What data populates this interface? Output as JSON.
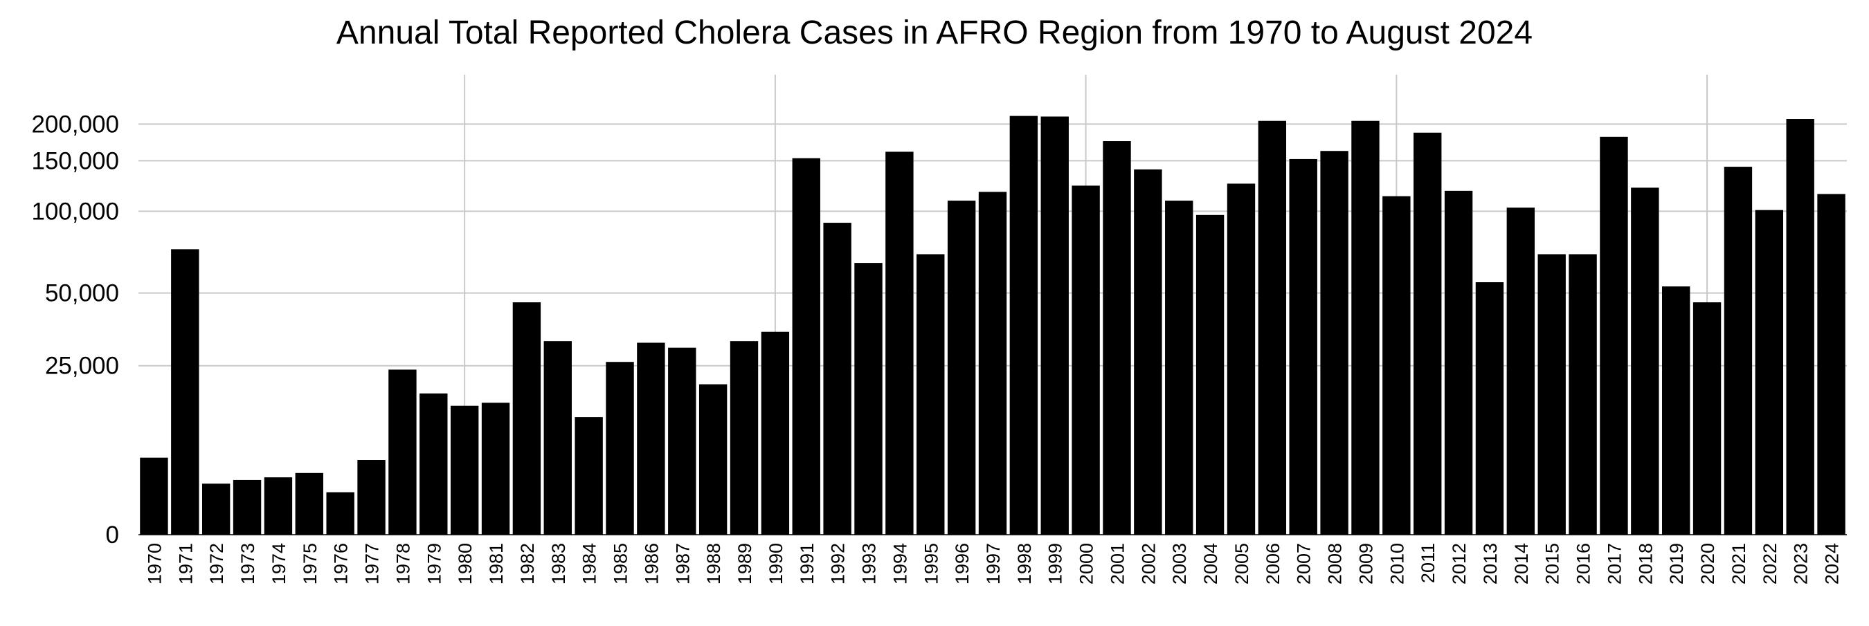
{
  "chart_data": {
    "type": "bar",
    "title": "Annual Total Reported Cholera Cases in AFRO Region from 1970 to August 2024",
    "xlabel": "",
    "ylabel": "",
    "y_scale": "symlog",
    "ylim": [
      0,
      210000
    ],
    "y_ticks": [
      {
        "value": 0,
        "label": "0"
      },
      {
        "value": 25000,
        "label": "25,000"
      },
      {
        "value": 50000,
        "label": "50,000"
      },
      {
        "value": 100000,
        "label": "100,000"
      },
      {
        "value": 150000,
        "label": "150,000"
      },
      {
        "value": 200000,
        "label": "200,000"
      }
    ],
    "x_grid_at": [
      "1980",
      "1990",
      "2000",
      "2010",
      "2020"
    ],
    "grid": true,
    "bar_color": "#000000",
    "categories": [
      "1970",
      "1971",
      "1972",
      "1973",
      "1974",
      "1975",
      "1976",
      "1977",
      "1978",
      "1979",
      "1980",
      "1981",
      "1982",
      "1983",
      "1984",
      "1985",
      "1986",
      "1987",
      "1988",
      "1989",
      "1990",
      "1991",
      "1992",
      "1993",
      "1994",
      "1995",
      "1996",
      "1997",
      "1998",
      "1999",
      "2000",
      "2001",
      "2002",
      "2003",
      "2004",
      "2005",
      "2006",
      "2007",
      "2008",
      "2009",
      "2010",
      "2011",
      "2012",
      "2013",
      "2014",
      "2015",
      "2016",
      "2017",
      "2018",
      "2019",
      "2020",
      "2021",
      "2022",
      "2023",
      "2024"
    ],
    "values": [
      7700,
      73000,
      4600,
      5000,
      5300,
      5800,
      3700,
      7400,
      24000,
      18500,
      16000,
      16600,
      46000,
      32000,
      13900,
      26000,
      31500,
      30000,
      20500,
      32000,
      35000,
      153000,
      91000,
      65000,
      161000,
      70000,
      109000,
      117000,
      213000,
      212000,
      123000,
      175000,
      140000,
      109000,
      97000,
      125000,
      205000,
      152000,
      162000,
      205000,
      113000,
      187000,
      118000,
      55000,
      103000,
      70000,
      70000,
      181000,
      121000,
      53000,
      46000,
      143000,
      101000,
      208000,
      115000
    ]
  }
}
